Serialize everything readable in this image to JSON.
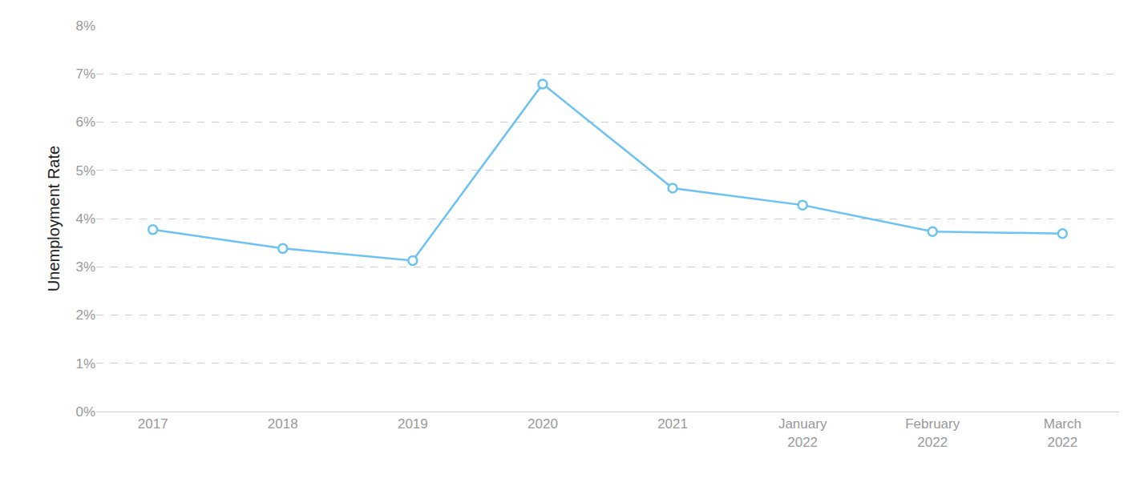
{
  "chart_data": {
    "type": "line",
    "y_label": "Unemployment Rate",
    "categories": [
      "2017",
      "2018",
      "2019",
      "2020",
      "2021",
      "January 2022",
      "February 2022",
      "March 2022"
    ],
    "values": [
      3.77,
      3.38,
      3.13,
      6.79,
      4.63,
      4.28,
      3.73,
      3.69
    ],
    "color": "#6cc3f3",
    "marker": "open-circle",
    "ylim": [
      0,
      8
    ],
    "yticks": [
      {
        "value": 0,
        "label": "0%"
      },
      {
        "value": 1,
        "label": "1%"
      },
      {
        "value": 2,
        "label": "2%"
      },
      {
        "value": 3,
        "label": "3%"
      },
      {
        "value": 4,
        "label": "4%"
      },
      {
        "value": 5,
        "label": "5%"
      },
      {
        "value": 6,
        "label": "6%"
      },
      {
        "value": 7,
        "label": "7%"
      },
      {
        "value": 8,
        "label": "8%"
      }
    ],
    "grid": true
  }
}
